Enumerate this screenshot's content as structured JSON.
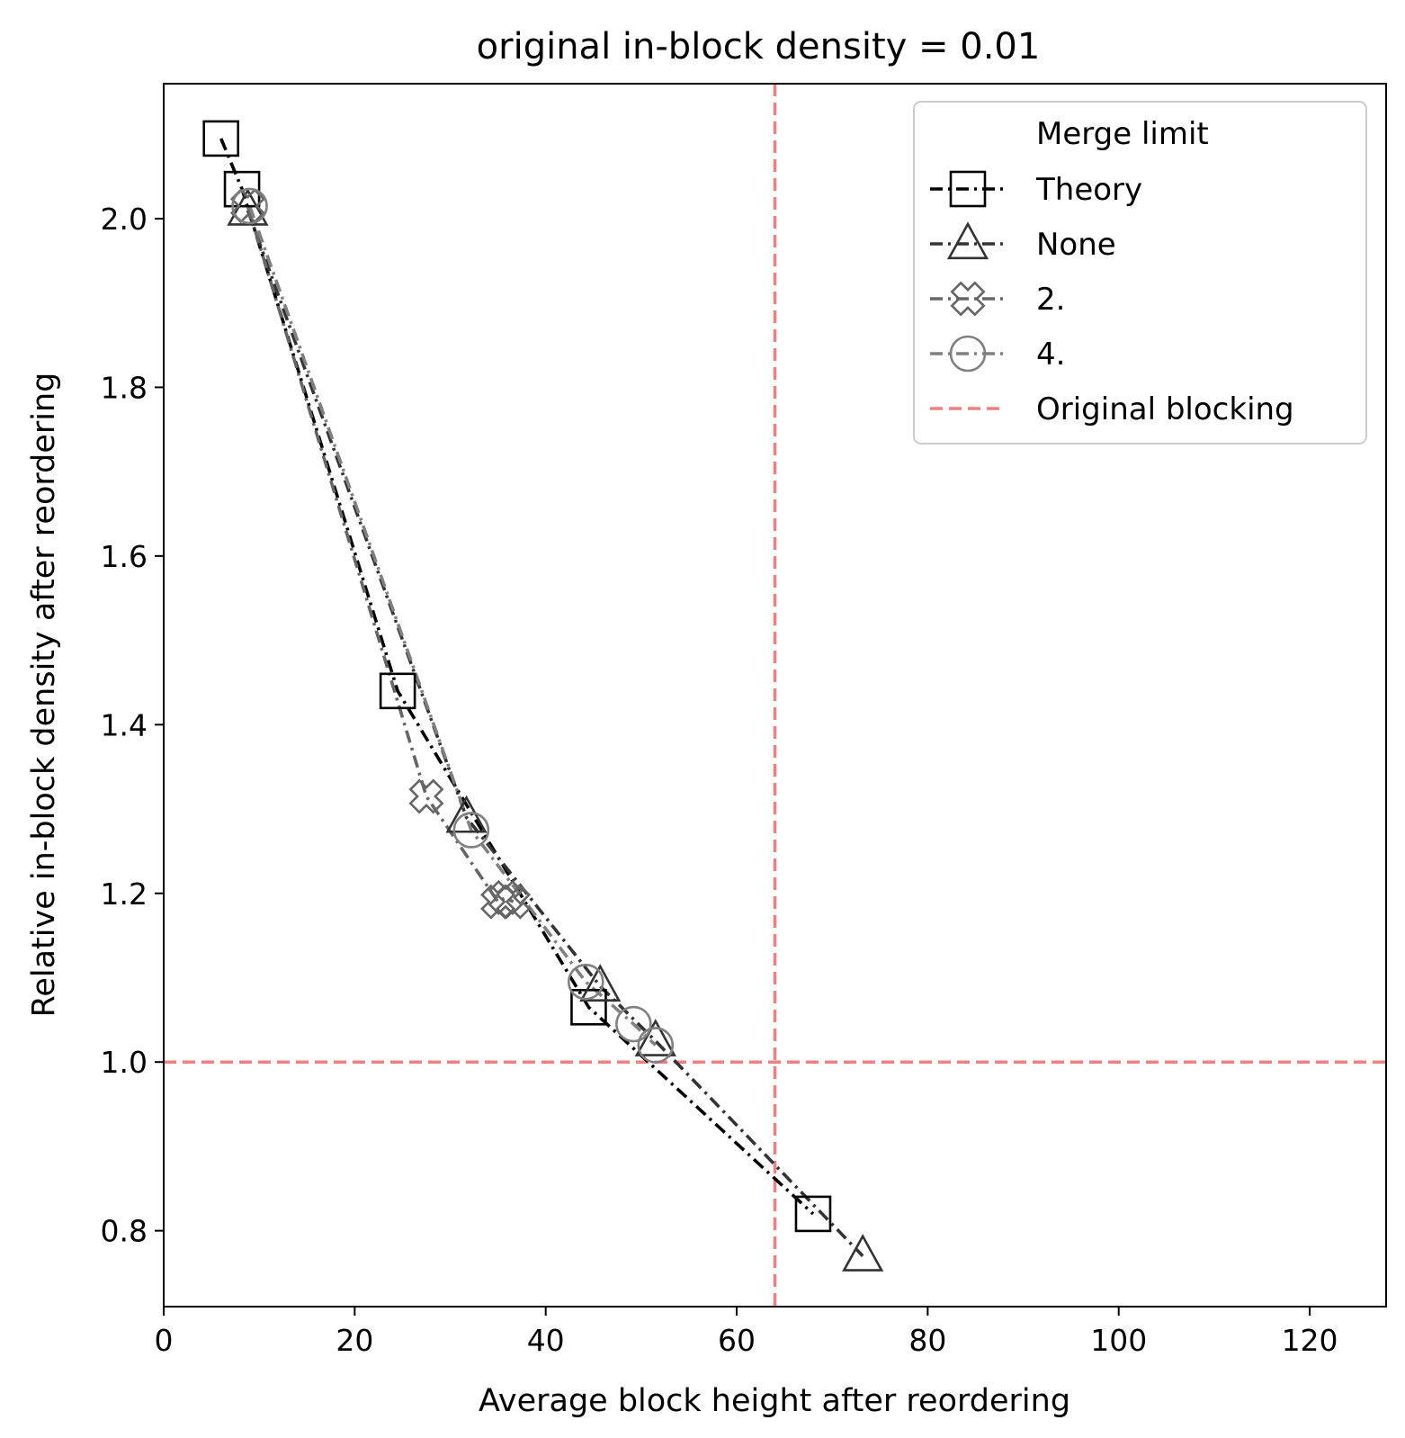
{
  "chart_data": {
    "type": "line",
    "title": "original in-block density = 0.01",
    "xlabel": "Average block height after reordering",
    "ylabel": "Relative in-block density after reordering",
    "xlim": [
      0,
      128
    ],
    "ylim": [
      0.71,
      2.16
    ],
    "xticks": [
      "0",
      "20",
      "40",
      "60",
      "80",
      "100",
      "120"
    ],
    "yticks": [
      "0.8",
      "1.0",
      "1.2",
      "1.4",
      "1.6",
      "1.8",
      "2.0"
    ],
    "grid": false,
    "legend": {
      "title": "Merge limit",
      "placement": "top-right",
      "reference_label": "Original blocking"
    },
    "reference_lines": [
      {
        "orientation": "horizontal",
        "value": 1.0,
        "color": "#f08080",
        "style": "dashed"
      },
      {
        "orientation": "vertical",
        "value": 64,
        "color": "#f08080",
        "style": "dashed"
      }
    ],
    "series": [
      {
        "name": "Theory",
        "marker": "square",
        "color": "#000000",
        "x": [
          6,
          8.2,
          24.5,
          44.5,
          68
        ],
        "y": [
          2.095,
          2.035,
          1.44,
          1.065,
          0.82
        ]
      },
      {
        "name": "None",
        "marker": "triangle",
        "color": "#333333",
        "x": [
          8.8,
          31.7,
          45.7,
          51.5,
          73.2
        ],
        "y": [
          2.01,
          1.29,
          1.09,
          1.025,
          0.77
        ]
      },
      {
        "name": "2.",
        "marker": "cross",
        "color": "#666666",
        "x": [
          8.8,
          27.5,
          35,
          35.8,
          36.6
        ],
        "y": [
          2.015,
          1.315,
          1.19,
          1.195,
          1.19
        ]
      },
      {
        "name": "4.",
        "marker": "circle",
        "color": "#808080",
        "x": [
          9,
          32.2,
          44.2,
          49.2,
          51.5
        ],
        "y": [
          2.015,
          1.275,
          1.095,
          1.045,
          1.02
        ]
      }
    ]
  }
}
